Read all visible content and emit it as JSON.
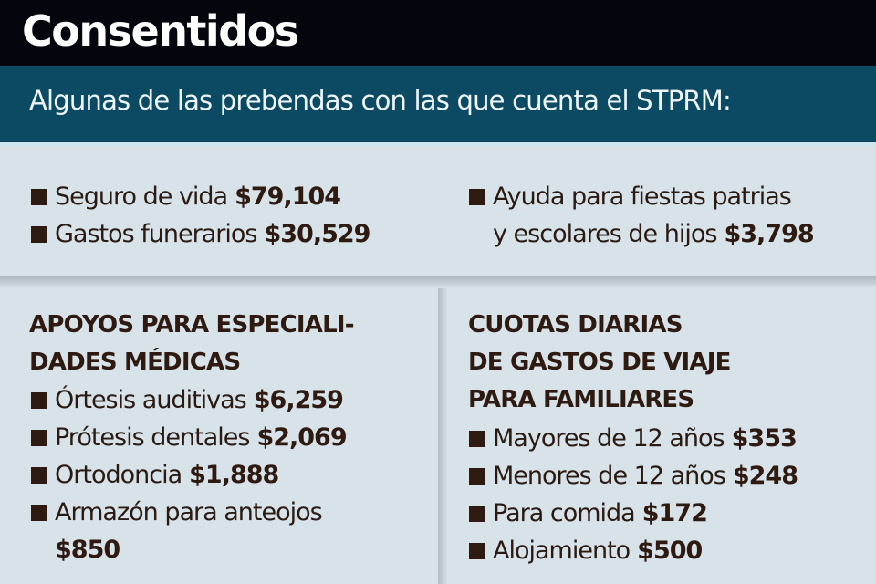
{
  "header": {
    "title": "Consentidos",
    "subtitle": "Algunas de las prebendas con las que cuenta el STPRM:"
  },
  "colors": {
    "title_bg": "#03060c",
    "subtitle_bg": "#0b4a62",
    "panel_bg": "#d8e3e9",
    "text": "#2e1a10"
  },
  "top_left": {
    "items": [
      {
        "label": "Seguro de vida",
        "amount": "$79,104"
      },
      {
        "label": "Gastos funerarios",
        "amount": "$30,529"
      }
    ]
  },
  "top_right": {
    "items": [
      {
        "label_line1": "Ayuda para fiestas patrias",
        "label_line2": "y escolares de hijos",
        "amount": "$3,798"
      }
    ]
  },
  "bottom_left": {
    "heading_line1": "APOYOS PARA ESPECIALI-",
    "heading_line2": "DADES MÉDICAS",
    "items": [
      {
        "label": "Órtesis auditivas",
        "amount": "$6,259"
      },
      {
        "label": "Prótesis dentales",
        "amount": "$2,069"
      },
      {
        "label": "Ortodoncia",
        "amount": "$1,888"
      },
      {
        "label": "Armazón para anteojos",
        "amount": "$850"
      }
    ]
  },
  "bottom_right": {
    "heading_line1": "CUOTAS DIARIAS",
    "heading_line2": "DE GASTOS DE VIAJE",
    "heading_line3": "PARA FAMILIARES",
    "items": [
      {
        "label": "Mayores de 12 años",
        "amount": "$353"
      },
      {
        "label": "Menores de 12 años",
        "amount": "$248"
      },
      {
        "label": "Para comida",
        "amount": "$172"
      },
      {
        "label": "Alojamiento",
        "amount": "$500"
      }
    ]
  },
  "icons": {
    "bullet": "square-bullet-icon"
  }
}
